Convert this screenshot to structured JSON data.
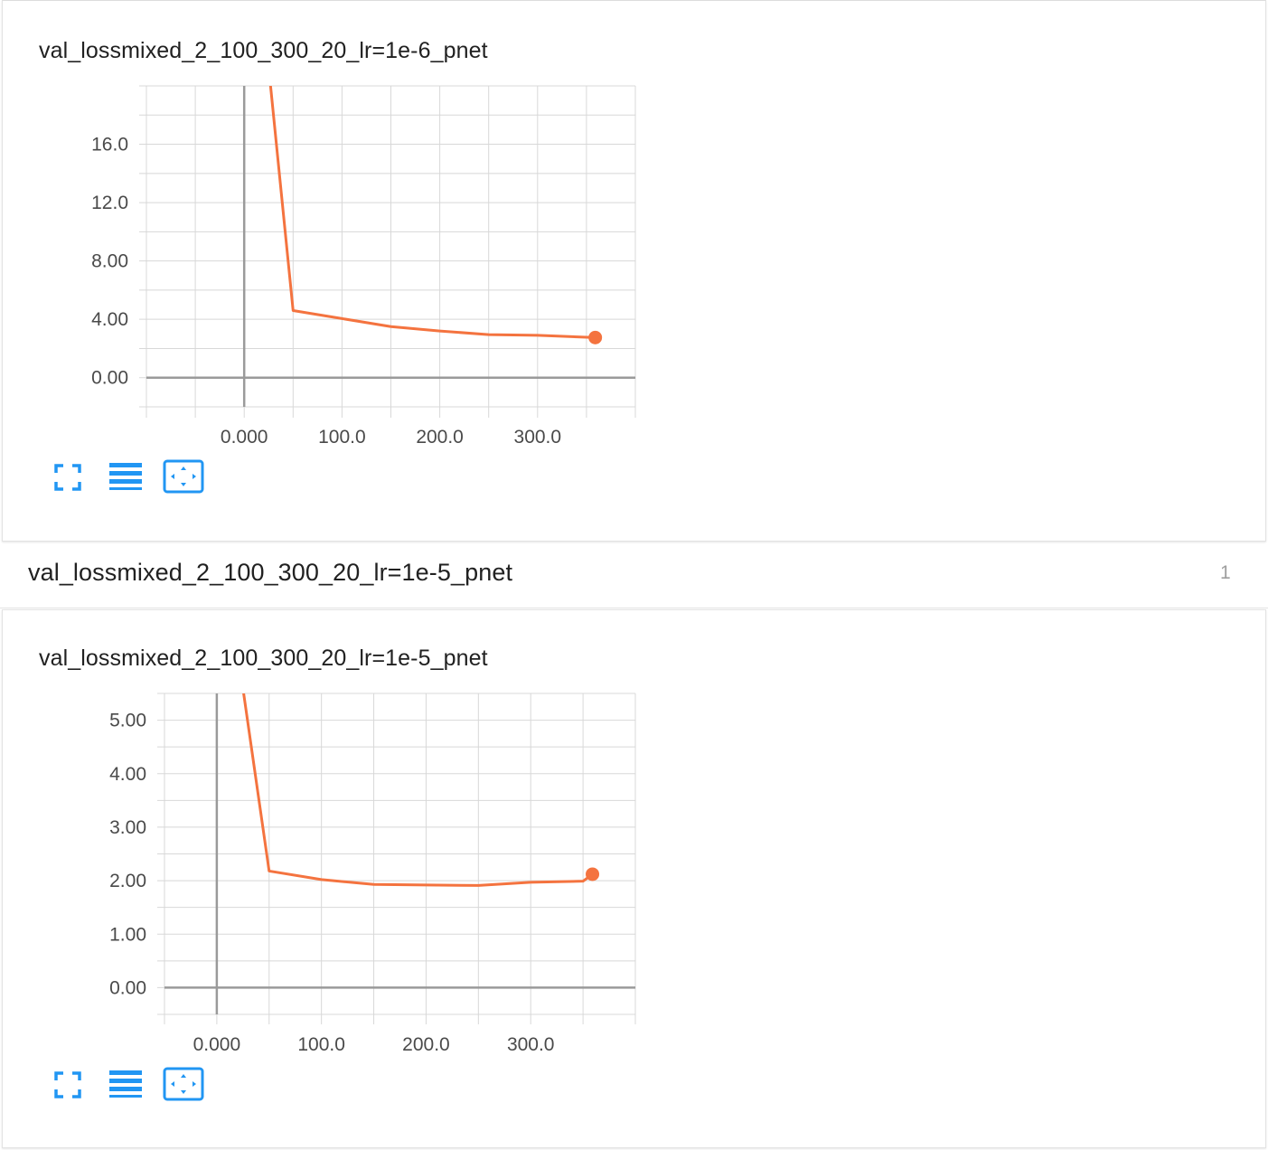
{
  "group": {
    "title": "val_lossmixed_2_100_300_20_lr=1e-5_pnet",
    "count": "1"
  },
  "colors": {
    "series": "#f4733f",
    "grid": "#d8d8d8",
    "axis": "#9a9a9a",
    "icon": "#2196f3"
  },
  "icons": [
    "fullscreen-icon",
    "toggle-log-scale-icon",
    "fit-domain-icon"
  ],
  "chart_data": [
    {
      "type": "line",
      "title": "val_lossmixed_2_100_300_20_lr=1e-6_pnet",
      "xlabel": "",
      "ylabel": "",
      "x_ticks": [
        "0.000",
        "100.0",
        "200.0",
        "300.0"
      ],
      "x_tick_values": [
        0,
        100,
        200,
        300
      ],
      "y_ticks": [
        "0.00",
        "4.00",
        "8.00",
        "12.0",
        "16.0"
      ],
      "y_tick_values": [
        0,
        4,
        8,
        12,
        16
      ],
      "xlim": [
        -100,
        400
      ],
      "ylim": [
        -2,
        20
      ],
      "grid": true,
      "series": [
        {
          "x": [
            0,
            50,
            100,
            150,
            200,
            250,
            300,
            359
          ],
          "y": [
            38.0,
            4.6,
            4.05,
            3.5,
            3.2,
            2.95,
            2.9,
            2.75
          ]
        }
      ]
    },
    {
      "type": "line",
      "title": "val_lossmixed_2_100_300_20_lr=1e-5_pnet",
      "xlabel": "",
      "ylabel": "",
      "x_ticks": [
        "0.000",
        "100.0",
        "200.0",
        "300.0"
      ],
      "x_tick_values": [
        0,
        100,
        200,
        300
      ],
      "y_ticks": [
        "0.00",
        "1.00",
        "2.00",
        "3.00",
        "4.00",
        "5.00"
      ],
      "y_tick_values": [
        0,
        1,
        2,
        3,
        4,
        5
      ],
      "xlim": [
        -50,
        400
      ],
      "ylim": [
        -0.5,
        5.5
      ],
      "grid": true,
      "series": [
        {
          "x": [
            0,
            50,
            100,
            150,
            200,
            250,
            300,
            350,
            359
          ],
          "y": [
            9.0,
            2.18,
            2.02,
            1.93,
            1.92,
            1.91,
            1.97,
            1.99,
            2.12
          ]
        }
      ]
    }
  ]
}
